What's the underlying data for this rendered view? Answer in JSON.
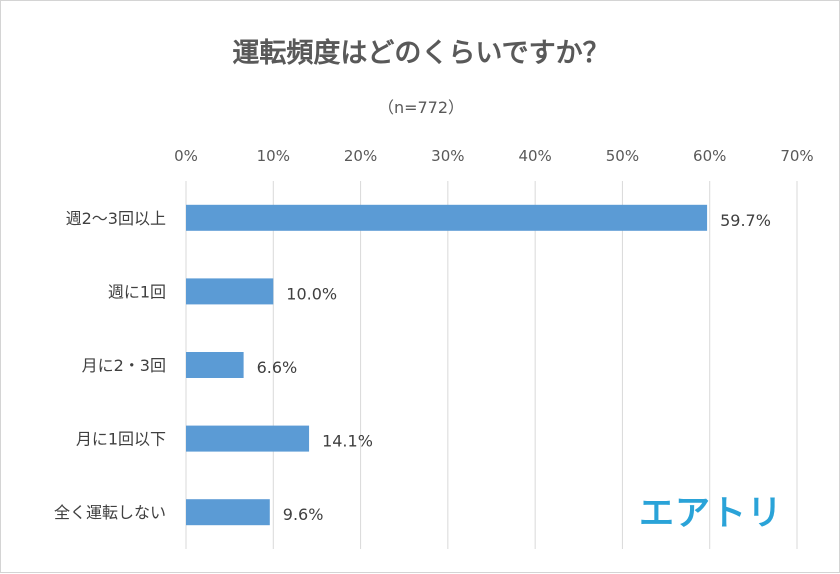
{
  "chart_data": {
    "type": "bar",
    "orientation": "horizontal",
    "title": "運転頻度はどのくらいですか？",
    "subtitle": "（n=772）",
    "categories": [
      "週2～3回以上",
      "週に1回",
      "月に2・3回",
      "月に1回以下",
      "全く運転しない"
    ],
    "values": [
      59.7,
      10.0,
      6.6,
      14.1,
      9.6
    ],
    "value_labels": [
      "59.7%",
      "10.0%",
      "6.6%",
      "14.1%",
      "9.6%"
    ],
    "x_ticks": [
      "0%",
      "10%",
      "20%",
      "30%",
      "40%",
      "50%",
      "60%",
      "70%"
    ],
    "xlim": [
      0,
      70
    ],
    "grid": true,
    "legend": "none",
    "bar_color": "#5b9bd5"
  },
  "logo": {
    "text": "エアトリ",
    "color": "#2aa3d8"
  }
}
